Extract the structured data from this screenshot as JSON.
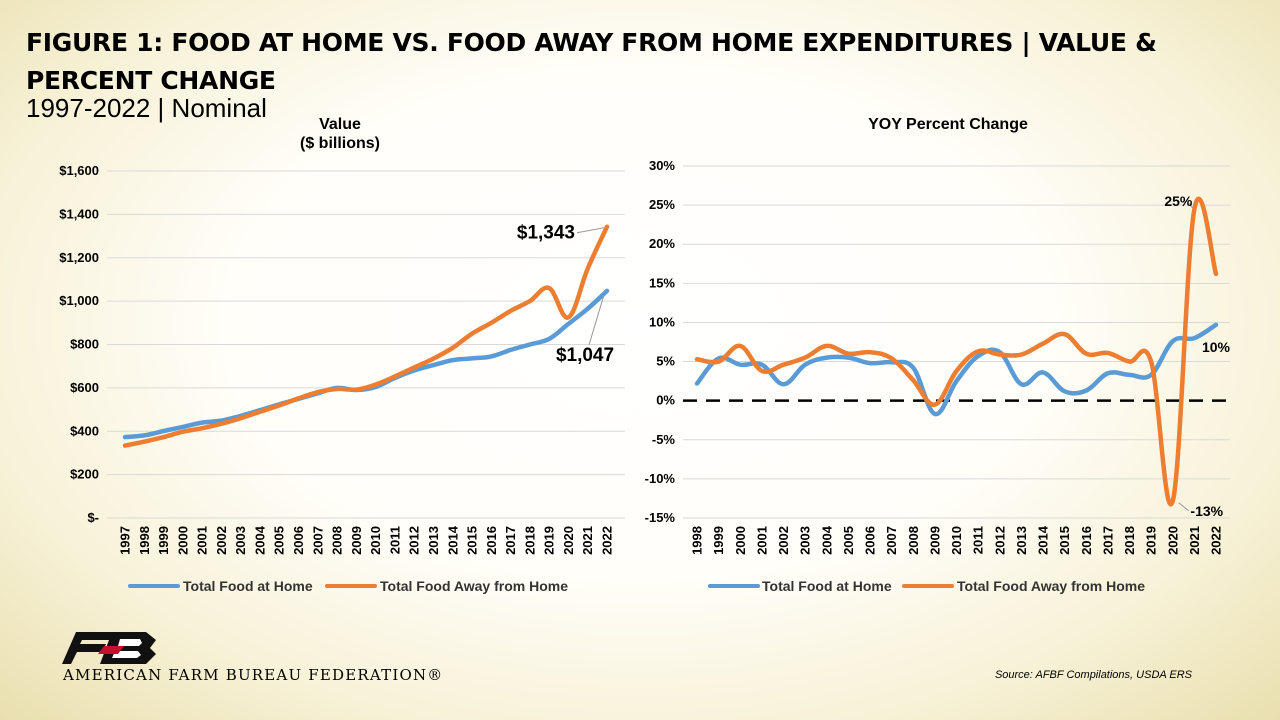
{
  "header": {
    "title": "FIGURE 1: FOOD AT HOME VS. FOOD AWAY FROM HOME EXPENDITURES | VALUE & PERCENT CHANGE",
    "subtitle": "1997-2022 | Nominal"
  },
  "footer": {
    "org_name": "AMERICAN FARM BUREAU FEDERATION®",
    "source": "Source: AFBF Compilations, USDA ERS"
  },
  "colors": {
    "home": "#5b9bd5",
    "away": "#ed7d31"
  },
  "chart_data": [
    {
      "type": "line",
      "title_line1": "Value",
      "title_line2": "($ billions)",
      "x": [
        1997,
        1998,
        1999,
        2000,
        2001,
        2002,
        2003,
        2004,
        2005,
        2006,
        2007,
        2008,
        2009,
        2010,
        2011,
        2012,
        2013,
        2014,
        2015,
        2016,
        2017,
        2018,
        2019,
        2020,
        2021,
        2022
      ],
      "series": [
        {
          "name": "Total Food at Home",
          "values": [
            373,
            381,
            401,
            420,
            440,
            449,
            471,
            497,
            524,
            549,
            575,
            600,
            590,
            604,
            646,
            680,
            705,
            728,
            736,
            745,
            775,
            800,
            826,
            895,
            965,
            1047
          ]
        },
        {
          "name": "Total Food Away from Home",
          "values": [
            334,
            352,
            373,
            398,
            414,
            435,
            460,
            490,
            519,
            552,
            580,
            595,
            592,
            615,
            653,
            694,
            735,
            785,
            850,
            900,
            955,
            1000,
            1060,
            925,
            1150,
            1343
          ]
        }
      ],
      "ylim": [
        0,
        1600
      ],
      "yticks": [
        0,
        200,
        400,
        600,
        800,
        1000,
        1200,
        1400,
        1600
      ],
      "ytick_labels": [
        "$-",
        "$200",
        "$400",
        "$600",
        "$800",
        "$1,000",
        "$1,200",
        "$1,400",
        "$1,600"
      ],
      "annotations": [
        {
          "text": "$1,343",
          "series": "Total Food Away from Home",
          "x": 2022
        },
        {
          "text": "$1,047",
          "series": "Total Food at Home",
          "x": 2022
        }
      ],
      "legend": "bottom"
    },
    {
      "type": "line",
      "title": "YOY Percent Change",
      "x": [
        1998,
        1999,
        2000,
        2001,
        2002,
        2003,
        2004,
        2005,
        2006,
        2007,
        2008,
        2009,
        2010,
        2011,
        2012,
        2013,
        2014,
        2015,
        2016,
        2017,
        2018,
        2019,
        2020,
        2021,
        2022
      ],
      "series": [
        {
          "name": "Total Food at Home",
          "values": [
            2.2,
            5.4,
            4.6,
            4.6,
            2.1,
            4.6,
            5.5,
            5.5,
            4.8,
            4.9,
            4.2,
            -1.7,
            2.5,
            5.7,
            6.2,
            2.1,
            3.6,
            1.2,
            1.3,
            3.5,
            3.3,
            3.3,
            7.6,
            8.0,
            9.7
          ]
        },
        {
          "name": "Total Food Away from Home",
          "values": [
            5.3,
            5.0,
            7.0,
            3.8,
            4.6,
            5.5,
            7.0,
            6.0,
            6.2,
            5.4,
            2.6,
            -0.5,
            3.8,
            6.3,
            5.9,
            5.9,
            7.3,
            8.5,
            6.0,
            6.1,
            5.0,
            5.0,
            -12.8,
            24.5,
            16.2
          ]
        }
      ],
      "ylim": [
        -15,
        30
      ],
      "yticks": [
        -15,
        -10,
        -5,
        0,
        5,
        10,
        15,
        20,
        25,
        30
      ],
      "ytick_labels": [
        "-15%",
        "-10%",
        "-5%",
        "0%",
        "5%",
        "10%",
        "15%",
        "20%",
        "25%",
        "30%"
      ],
      "zero_line": "dashed",
      "annotations": [
        {
          "text": "25%",
          "series": "Total Food Away from Home",
          "x": 2021
        },
        {
          "text": "10%",
          "series": "Total Food at Home",
          "x": 2022
        },
        {
          "text": "-13%",
          "series": "Total Food Away from Home",
          "x": 2020
        }
      ],
      "legend": "bottom"
    }
  ]
}
